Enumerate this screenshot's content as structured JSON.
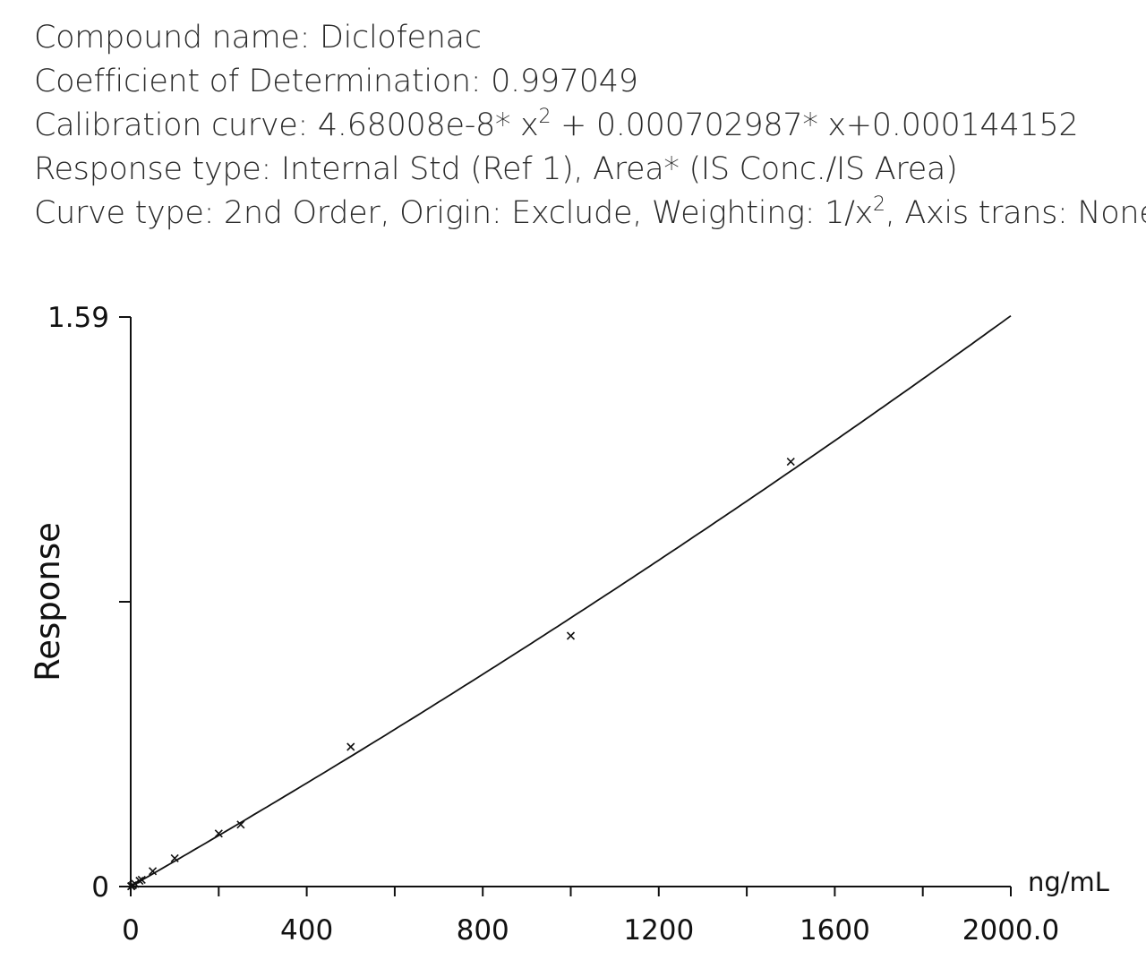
{
  "header": {
    "line1": "Compound name: Diclofenac",
    "line2": "Coefficient of Determination: 0.997049",
    "line3_a": "Calibration curve: 4.68008e-8* x",
    "line3_sup": "2",
    "line3_b": " + 0.000702987* x+0.000144152",
    "line4": "Response type: Internal Std (Ref 1), Area* (IS Conc./IS Area)",
    "line5_a": "Curve type: 2nd Order, Origin: Exclude, Weighting: 1/x",
    "line5_sup": "2",
    "line5_b": ", Axis trans: None"
  },
  "chart_data": {
    "type": "scatter",
    "title": "",
    "xlabel": "",
    "x_unit": "ng/mL",
    "ylabel": "Response",
    "xlim": [
      0,
      2000
    ],
    "ylim": [
      0,
      1.59
    ],
    "x_ticks": [
      0,
      200,
      400,
      600,
      800,
      1000,
      1200,
      1400,
      1600,
      1800,
      2000
    ],
    "x_tick_labels": [
      "0",
      "",
      "400",
      "",
      "800",
      "",
      "1200",
      "",
      "1600",
      "",
      "2000.0"
    ],
    "y_ticks": [
      0,
      0.795,
      1.59
    ],
    "y_tick_labels": [
      "0",
      "",
      "1.59"
    ],
    "grid": false,
    "fit": {
      "a": 4.68008e-08,
      "b": 0.000702987,
      "c": 0.000144152
    },
    "points": [
      {
        "x": 1,
        "y": 0.0008
      },
      {
        "x": 2,
        "y": 0.0015
      },
      {
        "x": 5,
        "y": 0.004
      },
      {
        "x": 10,
        "y": 0.0075
      },
      {
        "x": 20,
        "y": 0.016
      },
      {
        "x": 25,
        "y": 0.019
      },
      {
        "x": 50,
        "y": 0.043
      },
      {
        "x": 100,
        "y": 0.079
      },
      {
        "x": 200,
        "y": 0.148
      },
      {
        "x": 250,
        "y": 0.173
      },
      {
        "x": 500,
        "y": 0.39
      },
      {
        "x": 1000,
        "y": 0.7
      },
      {
        "x": 1500,
        "y": 1.186
      }
    ]
  }
}
